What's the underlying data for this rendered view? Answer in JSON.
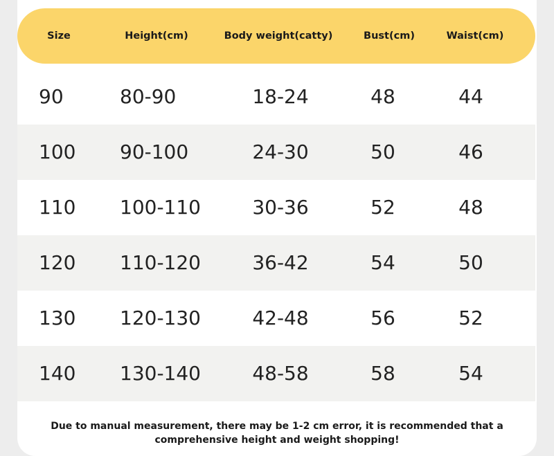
{
  "table": {
    "headers": [
      "Size",
      "Height(cm)",
      "Body weight(catty)",
      "Bust(cm)",
      "Waist(cm)"
    ],
    "rows": [
      [
        "90",
        "80-90",
        "18-24",
        "48",
        "44"
      ],
      [
        "100",
        "90-100",
        "24-30",
        "50",
        "46"
      ],
      [
        "110",
        "100-110",
        "30-36",
        "52",
        "48"
      ],
      [
        "120",
        "110-120",
        "36-42",
        "54",
        "50"
      ],
      [
        "130",
        "120-130",
        "42-48",
        "56",
        "52"
      ],
      [
        "140",
        "130-140",
        "48-58",
        "58",
        "54"
      ]
    ]
  },
  "note": {
    "line1": "Due to manual measurement, there may be 1-2 cm error, it is recommended that a",
    "line2": "comprehensive height and weight shopping!"
  },
  "colors": {
    "header_bg": "#fbd56a",
    "row_shade": "#f2f2f0",
    "page_bg": "#ededed"
  }
}
